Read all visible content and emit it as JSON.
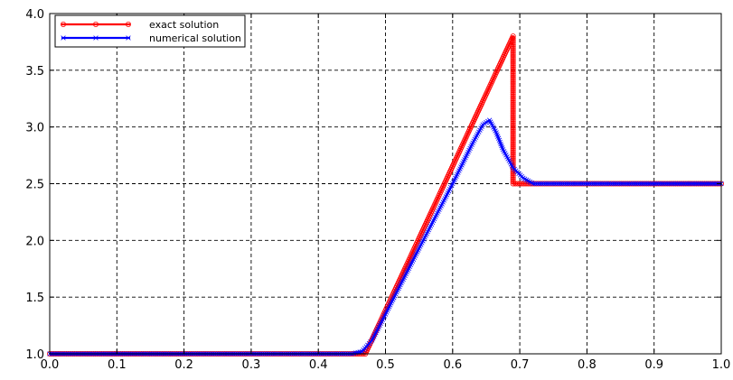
{
  "chart_data": {
    "type": "line",
    "title": "",
    "xlabel": "",
    "ylabel": "",
    "xlim": [
      0.0,
      1.0
    ],
    "ylim": [
      1.0,
      4.0
    ],
    "grid": true,
    "grid_style": "dashed",
    "legend_position": "top-left",
    "x_ticks": [
      0.0,
      0.1,
      0.2,
      0.3,
      0.4,
      0.5,
      0.6,
      0.7,
      0.8,
      0.9,
      1.0
    ],
    "x_tick_labels": [
      "0.0",
      "0.1",
      "0.2",
      "0.3",
      "0.4",
      "0.5",
      "0.6",
      "0.7",
      "0.8",
      "0.9",
      "1.0"
    ],
    "y_ticks": [
      1.0,
      1.5,
      2.0,
      2.5,
      3.0,
      3.5,
      4.0
    ],
    "y_tick_labels": [
      "1.0",
      "1.5",
      "2.0",
      "2.5",
      "3.0",
      "3.5",
      "4.0"
    ],
    "series": [
      {
        "name": "exact solution",
        "color": "#ff0000",
        "marker": "circle",
        "x": [
          0.0,
          0.47,
          0.69,
          0.69,
          0.7,
          1.0
        ],
        "y": [
          1.0,
          1.0,
          3.8,
          2.5,
          2.5,
          2.5
        ]
      },
      {
        "name": "numerical solution",
        "color": "#0000ff",
        "marker": "x",
        "x": [
          0.0,
          0.45,
          0.465,
          0.48,
          0.5,
          0.55,
          0.6,
          0.63,
          0.645,
          0.655,
          0.665,
          0.675,
          0.69,
          0.705,
          0.72,
          1.0
        ],
        "y": [
          1.0,
          1.0,
          1.02,
          1.12,
          1.35,
          1.93,
          2.5,
          2.86,
          3.02,
          3.06,
          2.95,
          2.8,
          2.64,
          2.55,
          2.5,
          2.5
        ]
      }
    ]
  }
}
